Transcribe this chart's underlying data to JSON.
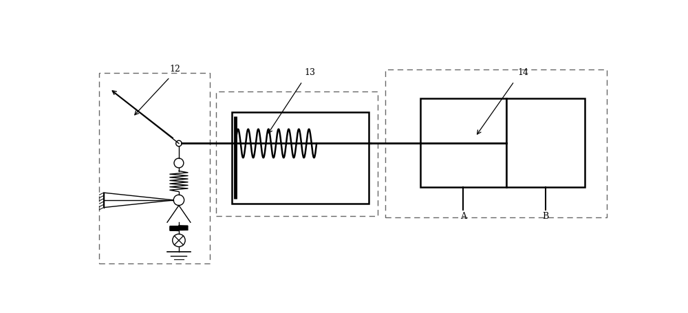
{
  "bg_color": "#ffffff",
  "line_color": "#000000",
  "dashed_color": "#666666",
  "label_12": "12",
  "label_13": "13",
  "label_14": "14",
  "label_A": "A",
  "label_B": "B",
  "fig_width": 10.0,
  "fig_height": 4.56
}
